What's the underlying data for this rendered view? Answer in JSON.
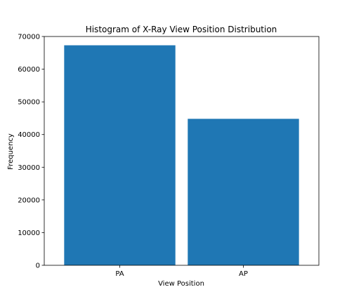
{
  "chart_data": {
    "type": "bar",
    "title": "Histogram of X-Ray View Position Distribution",
    "xlabel": "View Position",
    "ylabel": "Frequency",
    "categories": [
      "PA",
      "AP"
    ],
    "values": [
      67310,
      44810
    ],
    "ylim": [
      0,
      70000
    ],
    "yticks": [
      0,
      10000,
      20000,
      30000,
      40000,
      50000,
      60000,
      70000
    ],
    "grid": false,
    "legend": "none",
    "colors": {
      "bar": "#1f77b4",
      "axis": "#000000",
      "background": "#ffffff"
    }
  }
}
